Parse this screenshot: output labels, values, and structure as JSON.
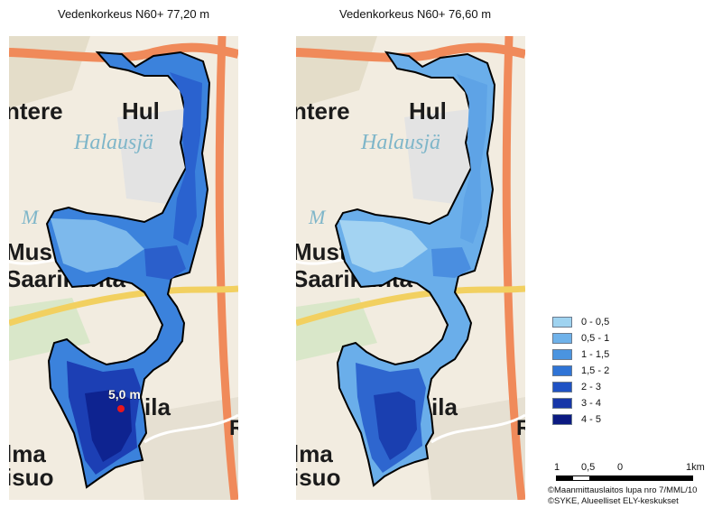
{
  "maps": [
    {
      "title": "Vedenkorkeus N60+ 77,20 m",
      "measurement": {
        "label": "5,0 m",
        "color": "#e8161d"
      }
    },
    {
      "title": "Vedenkorkeus N60+ 76,60 m"
    }
  ],
  "basemap_labels": {
    "place_1": "ntere",
    "place_2": "Hul",
    "place_3": "Halausjä",
    "place_4": "Mustin",
    "place_5": "Saarikunta",
    "place_6": "ila",
    "place_7": "lma",
    "place_8": "isuo",
    "place_9": "R",
    "place_10": "M"
  },
  "legend": {
    "title": "",
    "items": [
      {
        "label": "0 - 0,5",
        "color": "#9fd3f0"
      },
      {
        "label": "0,5 - 1",
        "color": "#6fb2ea"
      },
      {
        "label": "1 - 1,5",
        "color": "#4a94e0"
      },
      {
        "label": "1,5 - 2",
        "color": "#2f74d6"
      },
      {
        "label": "2 - 3",
        "color": "#1f52c4"
      },
      {
        "label": "3 - 4",
        "color": "#1636a8"
      },
      {
        "label": "4 - 5",
        "color": "#0b1a82"
      }
    ]
  },
  "scalebar": {
    "labels": [
      "1",
      "0,5",
      "0",
      "1km"
    ]
  },
  "credits": {
    "line1": "©Maanmittauslaitos lupa nro 7/MML/10",
    "line2": "©SYKE, Alueelliset ELY-keskukset"
  }
}
